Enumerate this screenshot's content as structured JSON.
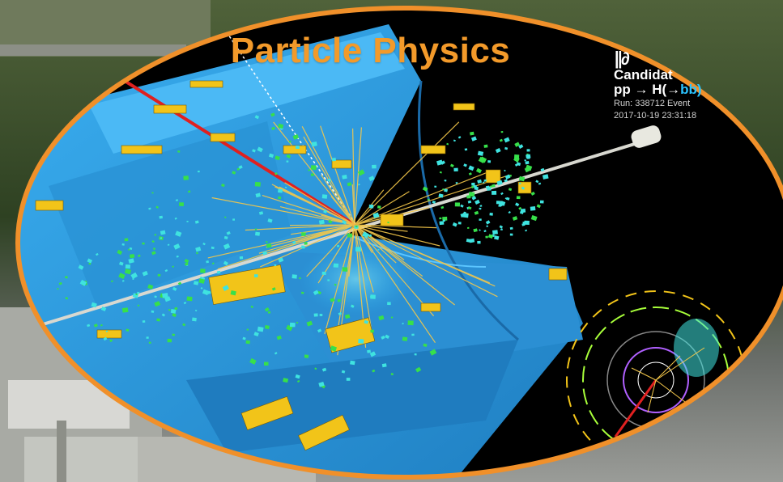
{
  "title": {
    "text": "Particle Physics",
    "color": "#f39a2a"
  },
  "event_display": {
    "logo_text": "∥∂",
    "candidate_line": "Candidat",
    "process_prefix": "pp → H(→",
    "process_highlight": "bb)",
    "run_line": "Run: 338712 Event",
    "timestamp_line": "2017-10-19 23:31:18"
  },
  "colors": {
    "frame_orange": "#f0902a",
    "detector_blue": "#2f9fe0",
    "background_black": "#000000",
    "calo_yellow": "#f2c419",
    "hits_cyan": "#3fe3e0",
    "hits_green": "#37e04a",
    "muon_red": "#e02020"
  },
  "icons": [
    "logo-icon",
    "detector-graphic",
    "vertex-burst",
    "inset-ring-display"
  ]
}
